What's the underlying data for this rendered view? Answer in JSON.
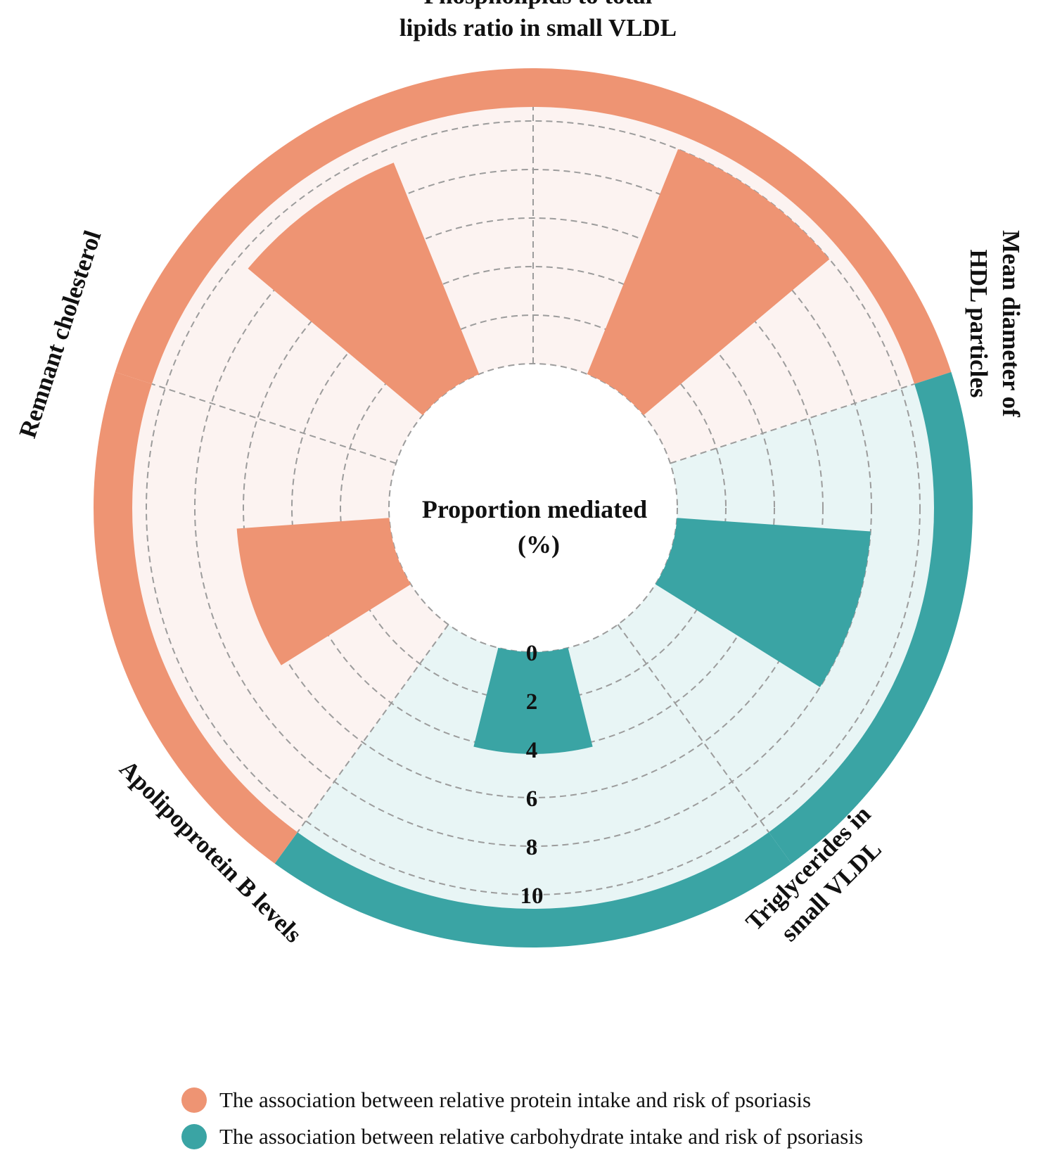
{
  "chart_data": {
    "type": "radial-bar",
    "center_title": "Proportion mediated",
    "center_subtitle": "(%)",
    "radial_axis": {
      "ticks": [
        "0",
        "2",
        "4",
        "6",
        "8",
        "10"
      ],
      "range": [
        0,
        10
      ]
    },
    "groups": [
      {
        "name": "The association between relative protein intake and risk of psoriasis",
        "color": "#EE9473",
        "background": "#FCF3F1"
      },
      {
        "name": "The association between relative carbohydrate intake and risk of psoriasis",
        "color": "#3AA4A4",
        "background": "#E8F5F5"
      }
    ],
    "categories": [
      {
        "label_lines": [
          "Phospholipids to total",
          "lipids ratio in small VLDL"
        ],
        "group": 0,
        "value": 10.0
      },
      {
        "label_lines": [
          "Mean diameter of",
          "HDL particles"
        ],
        "group": 1,
        "value": 8.0
      },
      {
        "label_lines": [
          "Triglycerides in",
          "small VLDL"
        ],
        "group": 1,
        "value": 4.2
      },
      {
        "label_lines": [
          "Apolipoprotein B levels"
        ],
        "group": 0,
        "value": 6.3
      },
      {
        "label_lines": [
          "Remnant cholesterol"
        ],
        "group": 0,
        "value": 9.4
      }
    ]
  }
}
